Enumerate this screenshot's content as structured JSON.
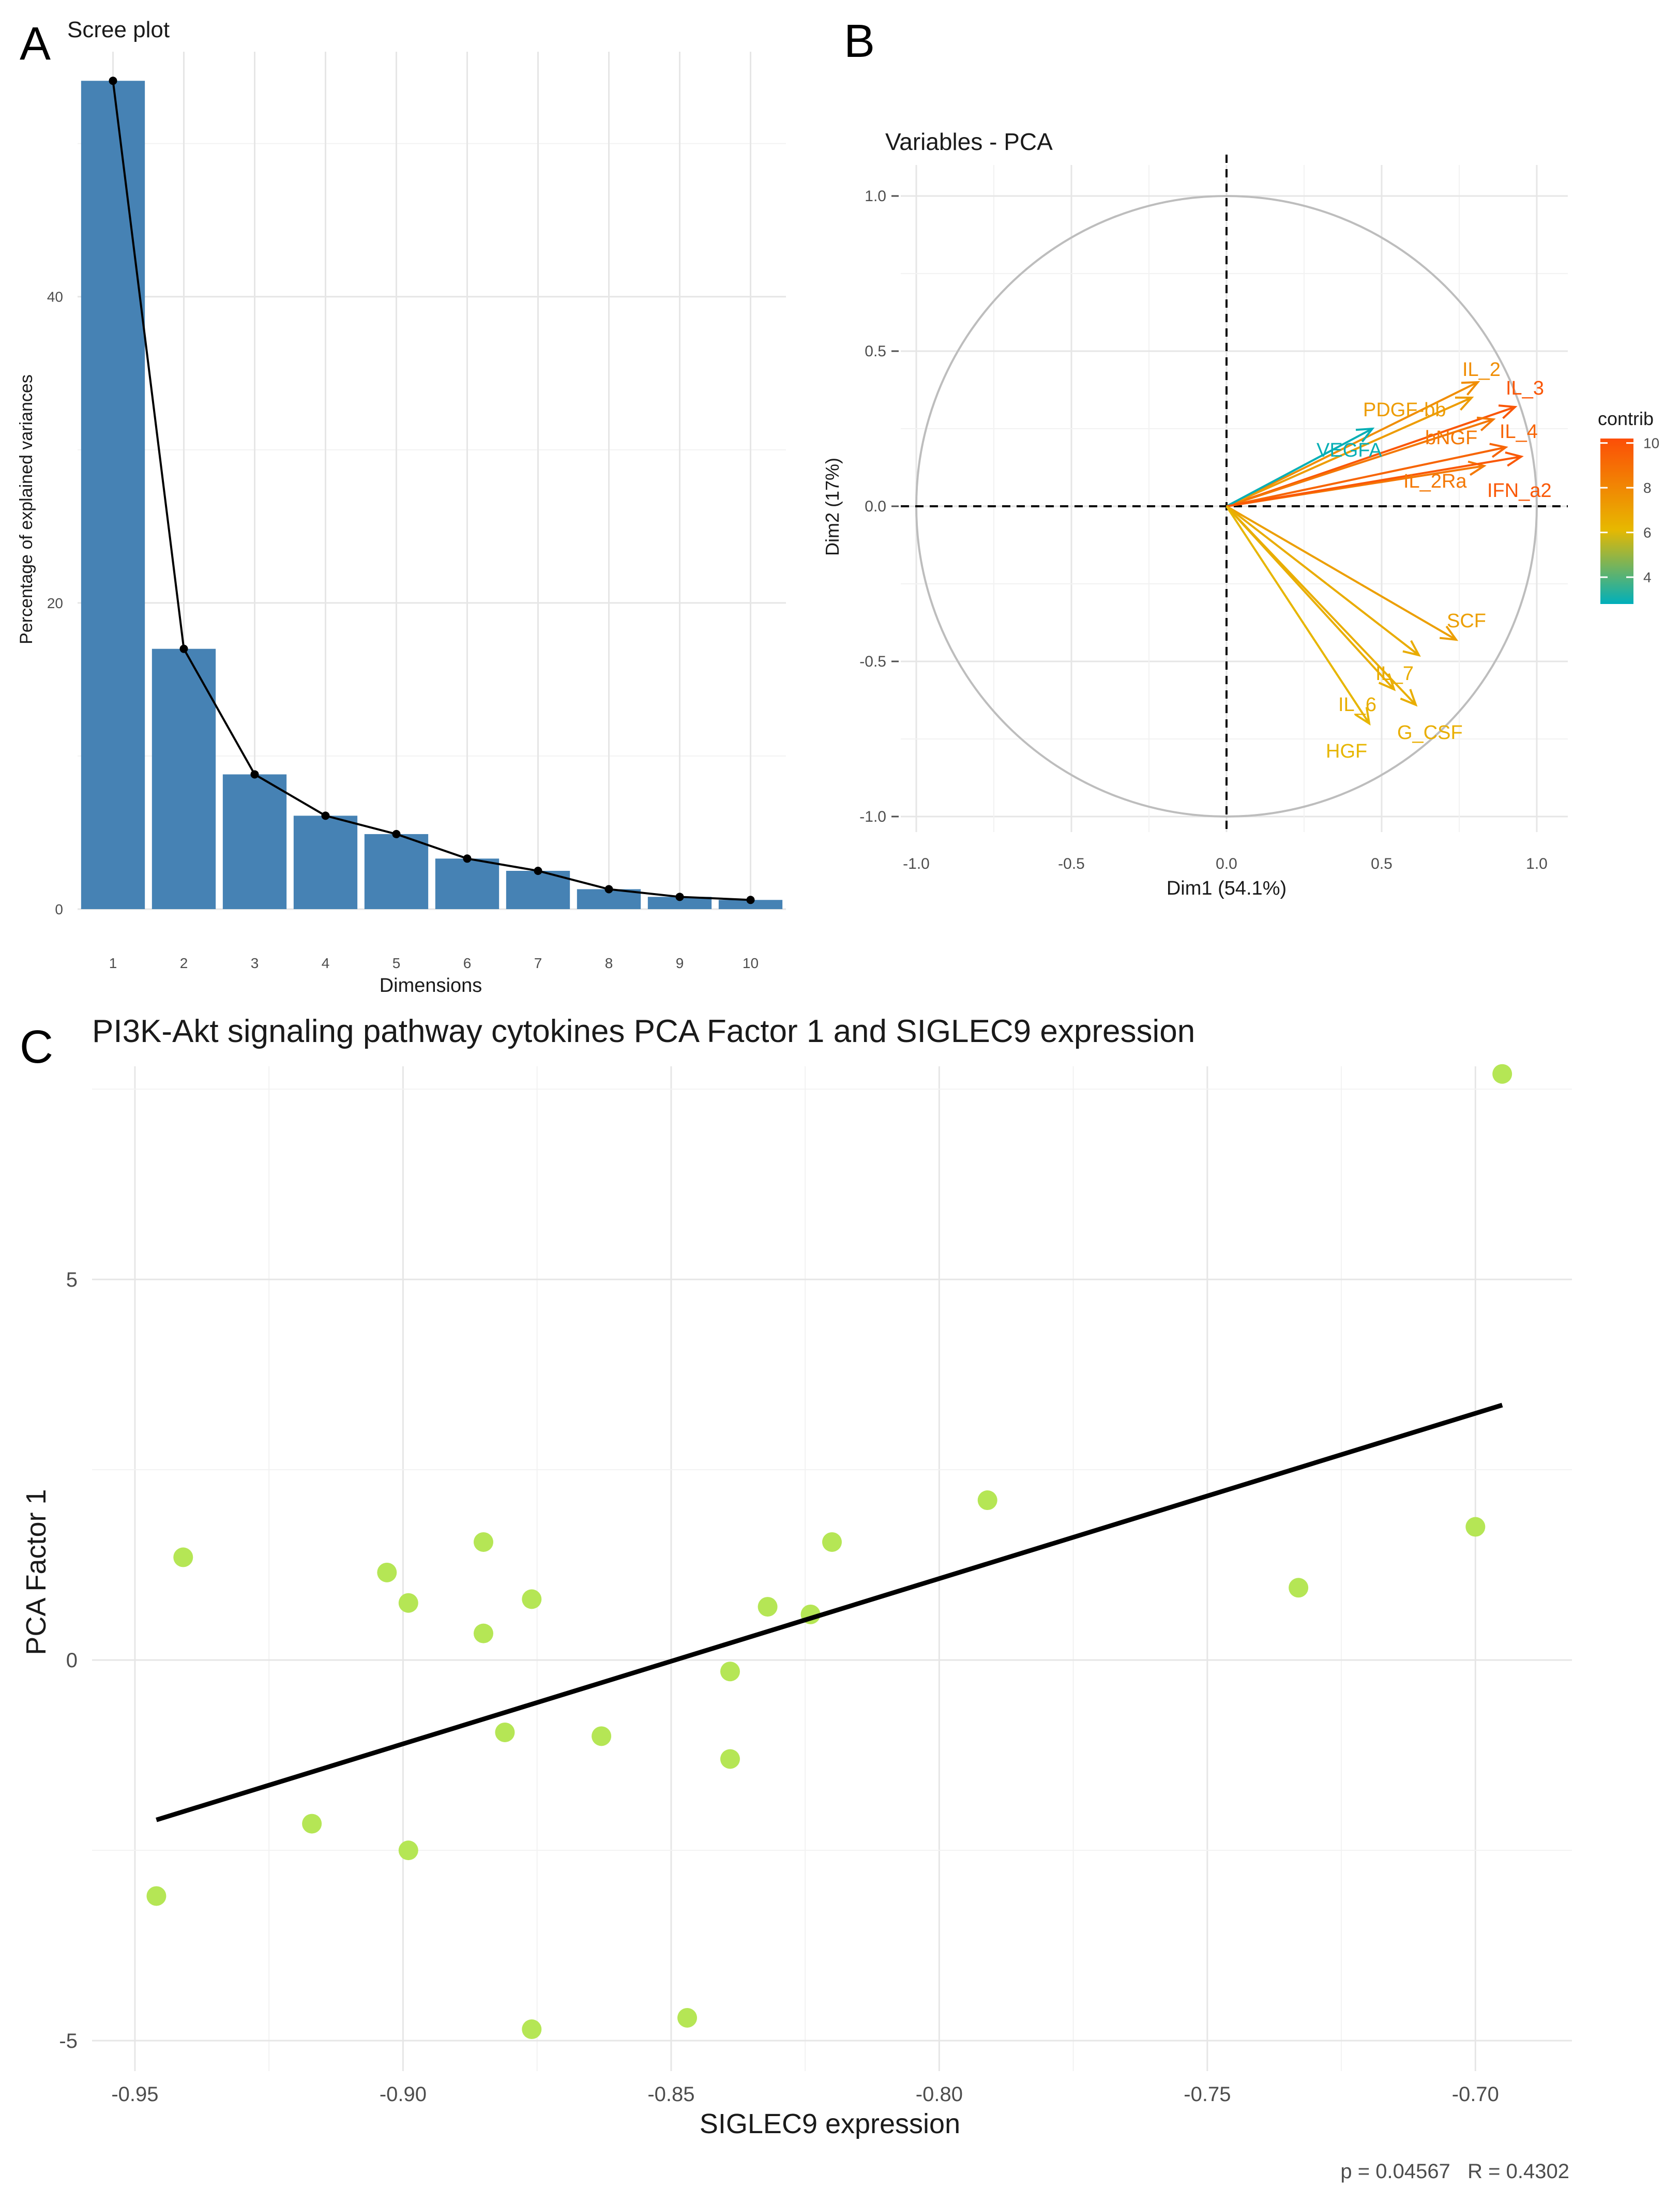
{
  "panels": {
    "a": "A",
    "b": "B",
    "c": "C"
  },
  "colors": {
    "bar": "#4682B4",
    "point": "#B5E655",
    "fit": "#000000",
    "contrib_low": "#00AFBB",
    "contrib_mid": "#E7B800",
    "contrib_high": "#FC4E07"
  },
  "chart_data": [
    {
      "id": "scree",
      "type": "bar",
      "title": "Scree plot",
      "xlabel": "Dimensions",
      "ylabel": "Percentage of explained variances",
      "categories": [
        "1",
        "2",
        "3",
        "4",
        "5",
        "6",
        "7",
        "8",
        "9",
        "10"
      ],
      "values": [
        54.1,
        17.0,
        8.8,
        6.1,
        4.9,
        3.3,
        2.5,
        1.3,
        0.8,
        0.6
      ],
      "ylim": [
        0,
        56
      ],
      "yticks": [
        0,
        20,
        40
      ],
      "ytick_labels": [
        "0",
        "20",
        "40"
      ],
      "line_overlay": true
    },
    {
      "id": "pca-variables",
      "type": "scatter",
      "subtype": "correlation-circle",
      "title": "Variables - PCA",
      "xlabel": "Dim1 (54.1%)",
      "ylabel": "Dim2 (17%)",
      "xlim": [
        -1.05,
        1.1
      ],
      "ylim": [
        -1.05,
        1.1
      ],
      "xticks": [
        -1.0,
        -0.5,
        0.0,
        0.5,
        1.0
      ],
      "xtick_labels": [
        "-1.0",
        "-0.5",
        "0.0",
        "0.5",
        "1.0"
      ],
      "yticks": [
        -1.0,
        -0.5,
        0.0,
        0.5,
        1.0
      ],
      "ytick_labels": [
        "-1.0",
        "-0.5",
        "0.0",
        "0.5",
        "1.0"
      ],
      "legend": {
        "title": "contrib",
        "ticks": [
          4,
          6,
          8,
          10
        ],
        "tick_labels": [
          "4",
          "6",
          "8",
          "10"
        ],
        "range": [
          2.8,
          10.2
        ],
        "position": "right"
      },
      "variables": [
        {
          "name": "IL_2",
          "x": 0.81,
          "y": 0.4,
          "contrib": 7.8
        },
        {
          "name": "IL_3",
          "x": 0.93,
          "y": 0.32,
          "contrib": 9.9
        },
        {
          "name": "PDGF_bb",
          "x": 0.79,
          "y": 0.35,
          "contrib": 7.2
        },
        {
          "name": "bNGF",
          "x": 0.86,
          "y": 0.28,
          "contrib": 8.6
        },
        {
          "name": "IL_4",
          "x": 0.9,
          "y": 0.19,
          "contrib": 9.3
        },
        {
          "name": "VEGFA",
          "x": 0.47,
          "y": 0.25,
          "contrib": 2.9
        },
        {
          "name": "IL_2Ra",
          "x": 0.83,
          "y": 0.13,
          "contrib": 8.6
        },
        {
          "name": "IFN_a2",
          "x": 0.95,
          "y": 0.16,
          "contrib": 9.8
        },
        {
          "name": "SCF",
          "x": 0.74,
          "y": -0.43,
          "contrib": 7.1
        },
        {
          "name": "IL_7",
          "x": 0.62,
          "y": -0.48,
          "contrib": 6.6
        },
        {
          "name": "IL_6",
          "x": 0.54,
          "y": -0.59,
          "contrib": 6.5
        },
        {
          "name": "G_CSF",
          "x": 0.61,
          "y": -0.64,
          "contrib": 6.5
        },
        {
          "name": "HGF",
          "x": 0.46,
          "y": -0.7,
          "contrib": 6.2
        }
      ],
      "label_display": [
        {
          "text": "IL_2",
          "x": 0.76,
          "y": 0.42
        },
        {
          "text": "IL_3",
          "x": 0.9,
          "y": 0.36
        },
        {
          "text": "PDGF-bb",
          "x": 0.44,
          "y": 0.29
        },
        {
          "text": "bNGF",
          "x": 0.64,
          "y": 0.2
        },
        {
          "text": "IL_4",
          "x": 0.88,
          "y": 0.22
        },
        {
          "text": "VEGFA",
          "x": 0.29,
          "y": 0.16
        },
        {
          "text": "IL_2Ra",
          "x": 0.57,
          "y": 0.06
        },
        {
          "text": "IFN_a2",
          "x": 0.84,
          "y": 0.03
        },
        {
          "text": "SCF",
          "x": 0.71,
          "y": -0.39
        },
        {
          "text": "IL_7",
          "x": 0.48,
          "y": -0.56
        },
        {
          "text": "IL_6",
          "x": 0.36,
          "y": -0.66
        },
        {
          "text": "G_CSF",
          "x": 0.55,
          "y": -0.75
        },
        {
          "text": "HGF",
          "x": 0.32,
          "y": -0.81
        }
      ]
    },
    {
      "id": "siglec9-scatter",
      "type": "scatter",
      "title": "PI3K-Akt signaling pathway cytokines PCA Factor 1 and SIGLEC9 expression",
      "xlabel": "SIGLEC9 expression",
      "ylabel": "PCA Factor 1",
      "xlim": [
        -0.958,
        -0.682
      ],
      "ylim": [
        -5.4,
        7.8
      ],
      "xticks": [
        -0.95,
        -0.9,
        -0.85,
        -0.8,
        -0.75,
        -0.7
      ],
      "xtick_labels": [
        "-0.95",
        "-0.90",
        "-0.85",
        "-0.80",
        "-0.75",
        "-0.70"
      ],
      "yticks": [
        -5,
        0,
        5
      ],
      "ytick_labels": [
        "-5",
        "0",
        "5"
      ],
      "points": [
        {
          "x": -0.946,
          "y": -3.1
        },
        {
          "x": -0.941,
          "y": 1.35
        },
        {
          "x": -0.917,
          "y": -2.15
        },
        {
          "x": -0.903,
          "y": 1.15
        },
        {
          "x": -0.899,
          "y": 0.75
        },
        {
          "x": -0.899,
          "y": -2.5
        },
        {
          "x": -0.885,
          "y": 1.55
        },
        {
          "x": -0.885,
          "y": 0.35
        },
        {
          "x": -0.881,
          "y": -0.95
        },
        {
          "x": -0.876,
          "y": 0.8
        },
        {
          "x": -0.876,
          "y": -4.85
        },
        {
          "x": -0.863,
          "y": -1.0
        },
        {
          "x": -0.847,
          "y": -4.7
        },
        {
          "x": -0.839,
          "y": -0.15
        },
        {
          "x": -0.839,
          "y": -1.3
        },
        {
          "x": -0.832,
          "y": 0.7
        },
        {
          "x": -0.824,
          "y": 0.6
        },
        {
          "x": -0.82,
          "y": 1.55
        },
        {
          "x": -0.791,
          "y": 2.1
        },
        {
          "x": -0.733,
          "y": 0.95
        },
        {
          "x": -0.7,
          "y": 1.75
        },
        {
          "x": -0.695,
          "y": 7.7
        }
      ],
      "fit_line": {
        "x0": -0.946,
        "y0": -2.1,
        "x1": -0.695,
        "y1": 3.35
      },
      "annotation": "p = 0.04567   R = 0.4302"
    }
  ]
}
